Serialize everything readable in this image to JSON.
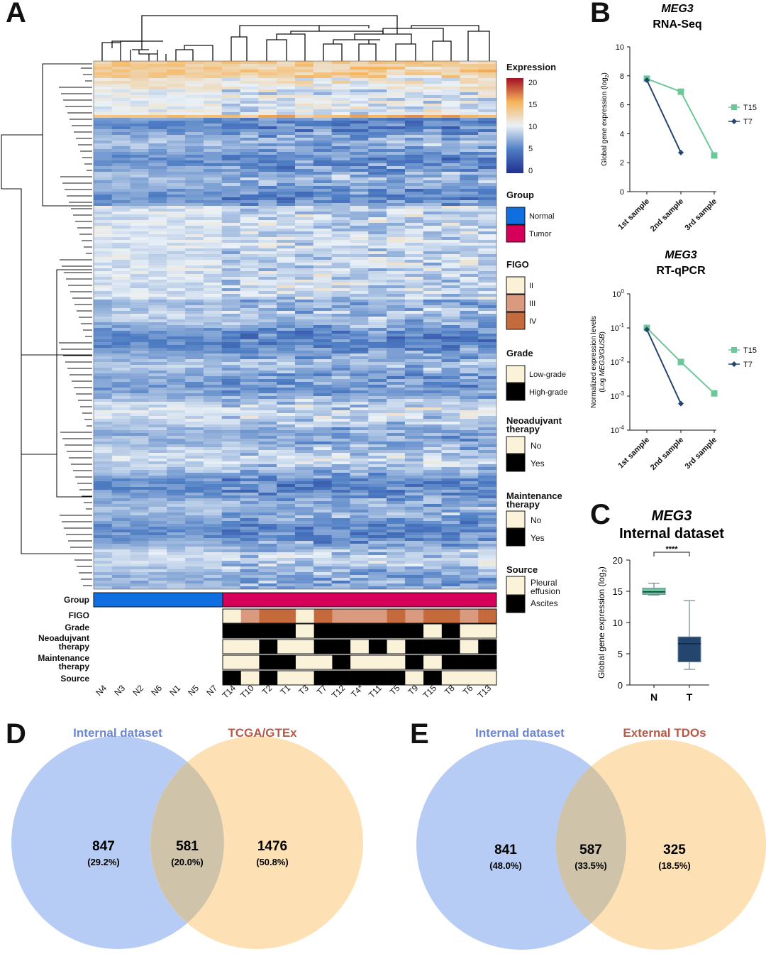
{
  "panels": {
    "a": "A",
    "b": "B",
    "c": "C",
    "d": "D",
    "e": "E"
  },
  "colors": {
    "normal": "#0f6ee0",
    "tumor": "#d6005a",
    "figo_ii": "#fbf1d6",
    "figo_iii": "#d99a80",
    "figo_iv": "#c46a3c",
    "cream": "#fbf3d9",
    "black": "#000000",
    "t15": "#6cc799",
    "t7": "#24456e",
    "venn_blue": "#b7ccf5",
    "venn_orange": "#fde1b4",
    "venn_overlap": "#cfc3a9",
    "internal_title": "#6a86d6",
    "tcga_title": "#b65a47"
  },
  "heatmap": {
    "normal_samples": [
      "N4",
      "N3",
      "N2",
      "N6",
      "N1",
      "N5",
      "N7"
    ],
    "tumor_samples": [
      "T14",
      "T10",
      "T2",
      "T1",
      "T3",
      "T7",
      "T12",
      "T4*",
      "T11",
      "T5",
      "T9",
      "T15",
      "T8",
      "T6",
      "T13"
    ],
    "annotation_labels": [
      "Group",
      "FIGO",
      "Grade",
      "Neoadujvant therapy",
      "Maintenance therapy",
      "Source"
    ],
    "figo": [
      "II",
      "III",
      "IV",
      "IV",
      "II",
      "IV",
      "III",
      "III",
      "III",
      "IV",
      "III",
      "IV",
      "IV",
      "III",
      "IV"
    ],
    "grade": [
      "High",
      "High",
      "High",
      "High",
      "Low",
      "High",
      "High",
      "High",
      "High",
      "High",
      "High",
      "Low",
      "High",
      "Low",
      "Low"
    ],
    "neoadjuvant": [
      "No",
      "No",
      "Yes",
      "No",
      "No",
      "Yes",
      "Yes",
      "No",
      "Yes",
      "No",
      "Yes",
      "Yes",
      "Yes",
      "No",
      "Yes"
    ],
    "maintenance": [
      "No",
      "No",
      "Yes",
      "Yes",
      "No",
      "No",
      "Yes",
      "No",
      "No",
      "No",
      "Yes",
      "No",
      "Yes",
      "Yes",
      "Yes"
    ],
    "source": [
      "Ascites",
      "Pleural",
      "Ascites",
      "Pleural",
      "Pleural",
      "Ascites",
      "Ascites",
      "Ascites",
      "Ascites",
      "Ascites",
      "Pleural",
      "Ascites",
      "Pleural",
      "Pleural",
      "Pleural"
    ]
  },
  "legend": {
    "expression_title": "Expression",
    "expression_ticks": [
      "20",
      "15",
      "10",
      "5",
      "0"
    ],
    "group_title": "Group",
    "group_items": [
      "Normal",
      "Tumor"
    ],
    "figo_title": "FIGO",
    "figo_items": [
      "II",
      "III",
      "IV"
    ],
    "grade_title": "Grade",
    "grade_items": [
      "Low-grade",
      "High-grade"
    ],
    "neo_title": "Neoadujvant therapy",
    "neo_items": [
      "No",
      "Yes"
    ],
    "maint_title": "Maintenance therapy",
    "maint_items": [
      "No",
      "Yes"
    ],
    "source_title": "Source",
    "source_items": [
      "Pleural effusion",
      "Ascites"
    ]
  },
  "chart_data": [
    {
      "type": "line",
      "title": "MEG3",
      "subtitle": "RNA-Seq",
      "ylabel": "Global gene expression (log2)",
      "categories": [
        "1st sample",
        "2nd sample",
        "3rd sample"
      ],
      "ylim": [
        0,
        10
      ],
      "yticks": [
        "0",
        "2",
        "4",
        "6",
        "8",
        "10"
      ],
      "series": [
        {
          "name": "T15",
          "values": [
            7.8,
            6.9,
            2.5
          ]
        },
        {
          "name": "T7",
          "values": [
            7.7,
            2.7,
            null
          ]
        }
      ]
    },
    {
      "type": "line",
      "title": "MEG3",
      "subtitle": "RT-qPCR",
      "ylabel": "Normalized expression levels (Log MEG3/GUSB)",
      "categories": [
        "1st sample",
        "2nd sample",
        "3rd sample"
      ],
      "yscale": "log",
      "ylim": [
        0.0001,
        1
      ],
      "yticks": [
        "10^0",
        "10^-1",
        "10^-2",
        "10^-3",
        "10^-4"
      ],
      "series": [
        {
          "name": "T15",
          "values": [
            0.1,
            0.01,
            0.0012
          ]
        },
        {
          "name": "T7",
          "values": [
            0.09,
            0.0006,
            null
          ]
        }
      ]
    },
    {
      "type": "box",
      "title": "MEG3",
      "subtitle": "Internal dataset",
      "ylabel": "Global gene expression (log2)",
      "categories": [
        "N",
        "T"
      ],
      "ylim": [
        0,
        20
      ],
      "yticks": [
        "0",
        "5",
        "10",
        "15",
        "20"
      ],
      "significance": "****",
      "boxes": [
        {
          "name": "N",
          "min": 14.4,
          "q1": 14.5,
          "median": 14.9,
          "q3": 15.5,
          "max": 16.3
        },
        {
          "name": "T",
          "min": 2.5,
          "q1": 3.7,
          "median": 6.6,
          "q3": 7.7,
          "max": 13.5
        }
      ]
    }
  ],
  "venn_d": {
    "left_title": "Internal dataset",
    "right_title": "TCGA/GTEx",
    "left_count": "847",
    "left_pct": "(29.2%)",
    "mid_count": "581",
    "mid_pct": "(20.0%)",
    "right_count": "1476",
    "right_pct": "(50.8%)"
  },
  "venn_e": {
    "left_title": "Internal dataset",
    "right_title": "External TDOs",
    "left_count": "841",
    "left_pct": "(48.0%)",
    "mid_count": "587",
    "mid_pct": "(33.5%)",
    "right_count": "325",
    "right_pct": "(18.5%)"
  }
}
